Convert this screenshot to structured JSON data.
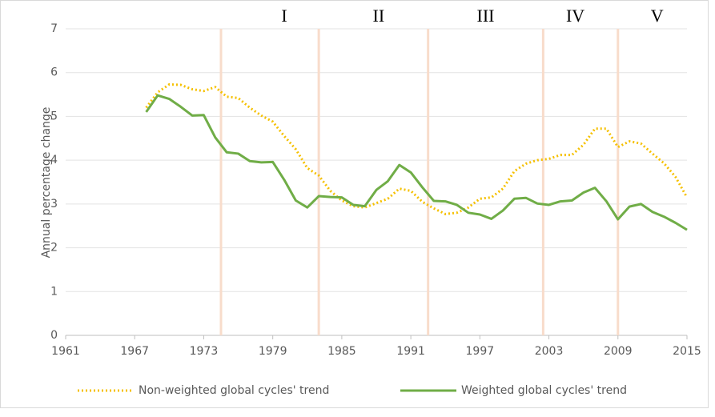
{
  "chart_data": {
    "type": "line",
    "y_axis_label": "Annual percentage change",
    "x": [
      1968,
      1969,
      1970,
      1971,
      1972,
      1973,
      1974,
      1975,
      1976,
      1977,
      1978,
      1979,
      1980,
      1981,
      1982,
      1983,
      1984,
      1985,
      1986,
      1987,
      1988,
      1989,
      1990,
      1991,
      1992,
      1993,
      1994,
      1995,
      1996,
      1997,
      1998,
      1999,
      2000,
      2001,
      2002,
      2003,
      2004,
      2005,
      2006,
      2007,
      2008,
      2009,
      2010,
      2011,
      2012,
      2013,
      2014,
      2015
    ],
    "series": [
      {
        "name": "Non-weighted global cycles' trend",
        "color": "#f5c000",
        "dashed": true,
        "values": [
          5.2,
          5.55,
          5.73,
          5.72,
          5.62,
          5.58,
          5.67,
          5.45,
          5.42,
          5.2,
          5.02,
          4.88,
          4.55,
          4.25,
          3.82,
          3.65,
          3.3,
          3.08,
          2.95,
          2.92,
          3.02,
          3.12,
          3.35,
          3.3,
          3.05,
          2.9,
          2.77,
          2.8,
          2.92,
          3.12,
          3.15,
          3.35,
          3.75,
          3.92,
          4.0,
          4.03,
          4.12,
          4.12,
          4.35,
          4.72,
          4.72,
          4.3,
          4.43,
          4.38,
          4.15,
          3.93,
          3.62,
          3.15
        ]
      },
      {
        "name": "Weighted global cycles' trend",
        "color": "#70ad47",
        "dashed": false,
        "values": [
          5.1,
          5.48,
          5.4,
          5.22,
          5.02,
          5.03,
          4.52,
          4.18,
          4.15,
          3.98,
          3.95,
          3.96,
          3.55,
          3.08,
          2.92,
          3.18,
          3.16,
          3.15,
          2.98,
          2.95,
          3.32,
          3.52,
          3.89,
          3.72,
          3.38,
          3.07,
          3.06,
          2.98,
          2.8,
          2.76,
          2.66,
          2.85,
          3.12,
          3.14,
          3.01,
          2.98,
          3.06,
          3.08,
          3.26,
          3.37,
          3.06,
          2.65,
          2.94,
          3.0,
          2.82,
          2.71,
          2.57,
          2.41
        ]
      }
    ],
    "cycle_boundaries": [
      1974.5,
      1983,
      1992.5,
      2002.5,
      2009
    ],
    "cycle_labels": [
      {
        "text": "I",
        "x": 1980
      },
      {
        "text": "II",
        "x": 1988.2
      },
      {
        "text": "III",
        "x": 1997.5
      },
      {
        "text": "IV",
        "x": 2005.3
      },
      {
        "text": "V",
        "x": 2012.4
      }
    ],
    "xlim": [
      1961,
      2015
    ],
    "xticks": [
      1961,
      1967,
      1973,
      1979,
      1985,
      1991,
      1997,
      2003,
      2009,
      2015
    ],
    "ylim": [
      0,
      7
    ],
    "yticks": [
      0,
      1,
      2,
      3,
      4,
      5,
      6,
      7
    ],
    "grid": true,
    "legend": "bottom"
  }
}
